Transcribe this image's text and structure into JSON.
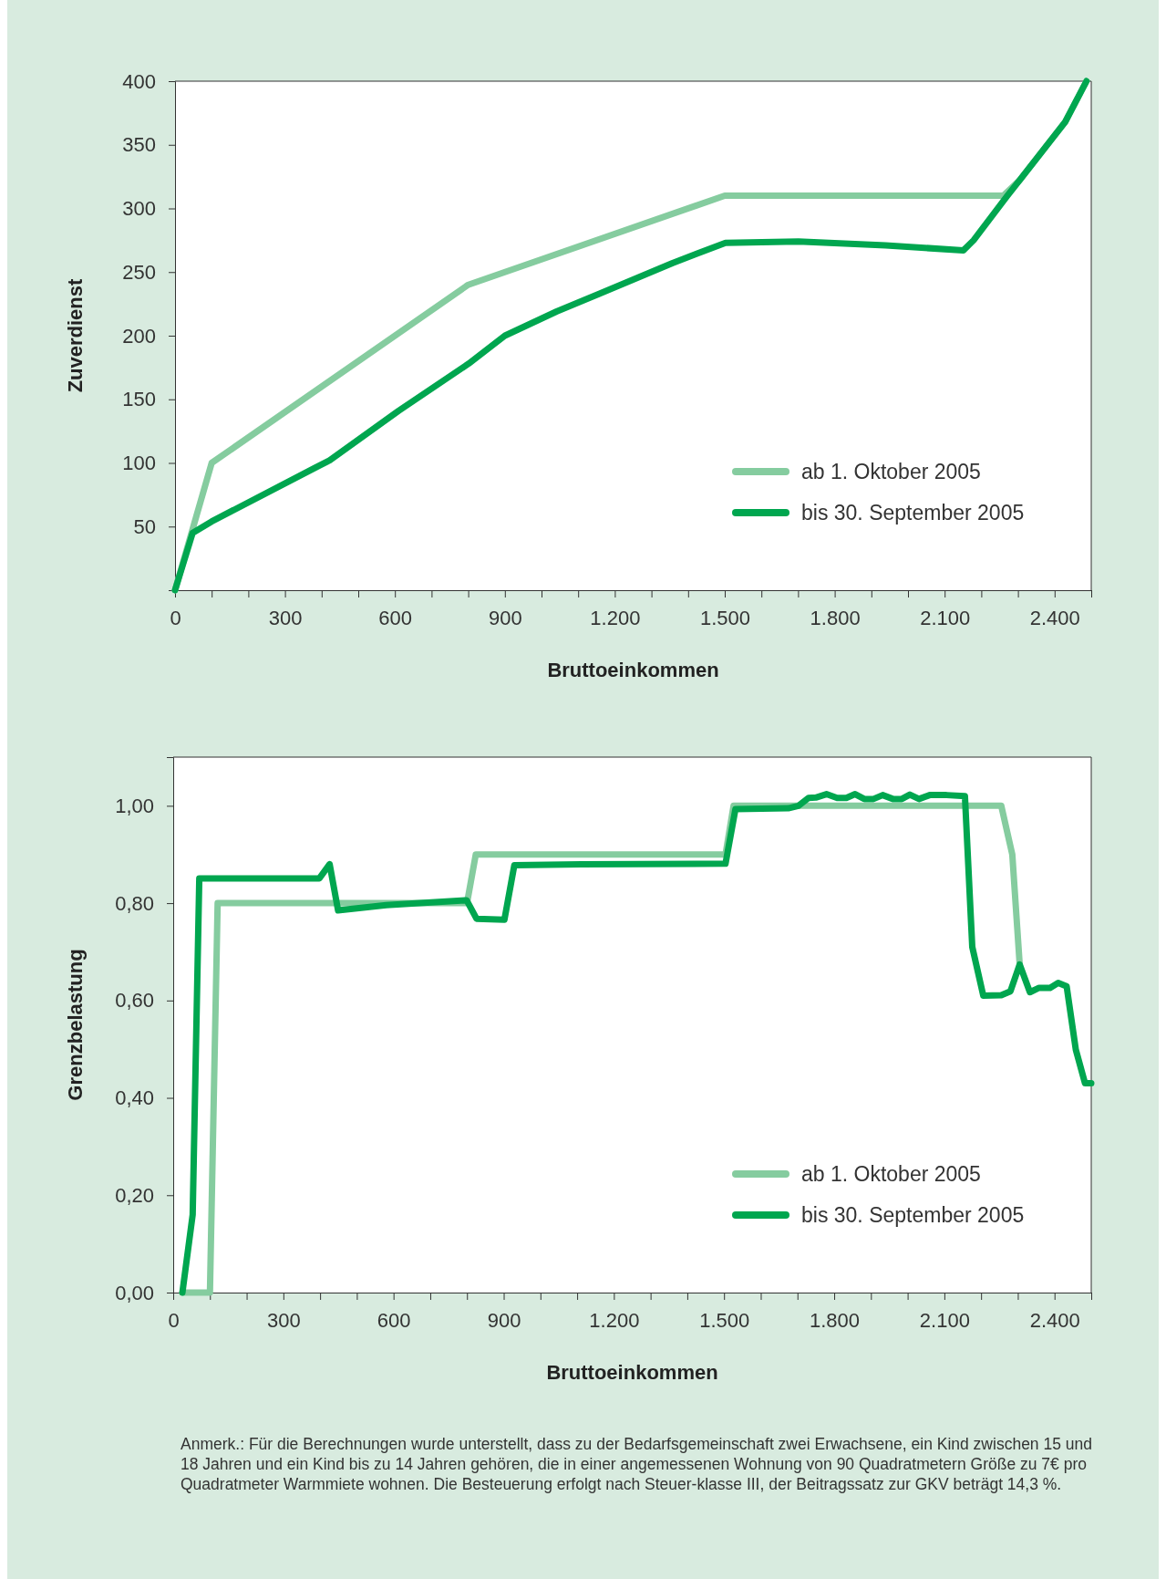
{
  "chart_data": [
    {
      "type": "line",
      "xlabel": "Bruttoeinkommen",
      "ylabel": "Zuverdienst",
      "xlim": [
        0,
        2500
      ],
      "ylim": [
        0,
        400
      ],
      "xticks": [
        0,
        {
          "value": 100,
          "label": null
        },
        {
          "value": 200,
          "label": null
        },
        300,
        {
          "value": 400,
          "label": null
        },
        {
          "value": 500,
          "label": null
        },
        600,
        {
          "value": 700,
          "label": null
        },
        {
          "value": 800,
          "label": null
        },
        900,
        {
          "value": 1000,
          "label": null
        },
        {
          "value": 1100,
          "label": null
        },
        {
          "value": 1200,
          "label": "1.200"
        },
        {
          "value": 1300,
          "label": null
        },
        {
          "value": 1400,
          "label": null
        },
        {
          "value": 1500,
          "label": "1.500"
        },
        {
          "value": 1600,
          "label": null
        },
        {
          "value": 1700,
          "label": null
        },
        {
          "value": 1800,
          "label": "1.800"
        },
        {
          "value": 1900,
          "label": null
        },
        {
          "value": 2000,
          "label": null
        },
        {
          "value": 2100,
          "label": "2.100"
        },
        {
          "value": 2200,
          "label": null
        },
        {
          "value": 2300,
          "label": null
        },
        {
          "value": 2400,
          "label": "2.400"
        },
        {
          "value": 2500,
          "label": null
        }
      ],
      "yticks": [
        {
          "value": 0,
          "label": null
        },
        50,
        100,
        150,
        200,
        250,
        300,
        350,
        400
      ],
      "legend": "bottom right",
      "grid": false,
      "line_style": "solid",
      "marker": "none",
      "series": [
        {
          "name": "ab 1. Oktober 2005",
          "color": "#85cc9f",
          "x": [
            0,
            100,
            800,
            1500,
            2260,
            2304,
            2429,
            2487
          ],
          "values": [
            0,
            100,
            240,
            310,
            310,
            322,
            368,
            400
          ]
        },
        {
          "name": "bis 30. September 2005",
          "color": "#00a64f",
          "x": [
            0,
            48,
            100,
            394,
            422,
            610,
            801,
            900,
            1041,
            1158,
            1357,
            1502,
            1701,
            1939,
            2151,
            2179,
            2271,
            2304,
            2429,
            2487
          ],
          "values": [
            0,
            45,
            54,
            98,
            102,
            141,
            178,
            200,
            219,
            233,
            257,
            273,
            274,
            271,
            267,
            275,
            310,
            322,
            368,
            400
          ]
        }
      ]
    },
    {
      "type": "line",
      "xlabel": "Bruttoeinkommen",
      "ylabel": "Grenzbelastung",
      "xlim": [
        0,
        2500
      ],
      "ylim": [
        0,
        1.1
      ],
      "xticks": [
        0,
        {
          "value": 100,
          "label": null
        },
        {
          "value": 200,
          "label": null
        },
        300,
        {
          "value": 400,
          "label": null
        },
        {
          "value": 500,
          "label": null
        },
        600,
        {
          "value": 700,
          "label": null
        },
        {
          "value": 800,
          "label": null
        },
        900,
        {
          "value": 1000,
          "label": null
        },
        {
          "value": 1100,
          "label": null
        },
        {
          "value": 1200,
          "label": "1.200"
        },
        {
          "value": 1300,
          "label": null
        },
        {
          "value": 1400,
          "label": null
        },
        {
          "value": 1500,
          "label": "1.500"
        },
        {
          "value": 1600,
          "label": null
        },
        {
          "value": 1700,
          "label": null
        },
        {
          "value": 1800,
          "label": "1.800"
        },
        {
          "value": 1900,
          "label": null
        },
        {
          "value": 2000,
          "label": null
        },
        {
          "value": 2100,
          "label": "2.100"
        },
        {
          "value": 2200,
          "label": null
        },
        {
          "value": 2300,
          "label": null
        },
        {
          "value": 2400,
          "label": "2.400"
        },
        {
          "value": 2500,
          "label": null
        }
      ],
      "yticks": [
        {
          "value": 0,
          "label": "0,00"
        },
        {
          "value": 0.2,
          "label": "0,20"
        },
        {
          "value": 0.4,
          "label": "0,40"
        },
        {
          "value": 0.6,
          "label": "0,60"
        },
        {
          "value": 0.8,
          "label": "0,80"
        },
        {
          "value": 1,
          "label": "1,00"
        }
      ],
      "legend": "bottom right",
      "grid": false,
      "line_style": "solid",
      "marker": "none",
      "series": [
        {
          "name": "ab 1. Oktober 2005",
          "color": "#85cc9f",
          "x": [
            25,
            100,
            121,
            800,
            824,
            1504,
            1526,
            2255,
            2285,
            2305
          ],
          "values": [
            0,
            0,
            0.8,
            0.8,
            0.9,
            0.9,
            1.0,
            1.0,
            0.9,
            0.676
          ]
        },
        {
          "name": "bis 30. September 2005",
          "color": "#00a64f",
          "x": [
            25,
            53,
            71,
            398,
            426,
            449,
            580,
            799,
            826,
            902,
            929,
            1111,
            1504,
            1531,
            1675,
            1703,
            1730,
            1750,
            1779,
            1808,
            1833,
            1857,
            1882,
            1907,
            1932,
            1960,
            1984,
            2006,
            2031,
            2060,
            2106,
            2156,
            2176,
            2206,
            2255,
            2280,
            2305,
            2333,
            2358,
            2388,
            2410,
            2433,
            2458,
            2483,
            2500
          ],
          "values": [
            0,
            0.16,
            0.851,
            0.851,
            0.88,
            0.785,
            0.796,
            0.806,
            0.768,
            0.766,
            0.878,
            0.88,
            0.881,
            0.993,
            0.995,
            1.0,
            1.016,
            1.017,
            1.024,
            1.016,
            1.016,
            1.024,
            1.014,
            1.014,
            1.022,
            1.014,
            1.014,
            1.023,
            1.014,
            1.022,
            1.022,
            1.02,
            0.71,
            0.61,
            0.611,
            0.619,
            0.674,
            0.617,
            0.626,
            0.626,
            0.636,
            0.629,
            0.499,
            0.43,
            0.43
          ]
        }
      ],
      "annotations": [
        "Anmerk.: Für die Berechnungen wurde unterstellt, dass zu der Bedarfsgemeinschaft zwei Erwachsene, ein Kind zwischen 15 und 18 Jahren und ein Kind bis zu 14 Jahren gehören, die in einer angemessenen Wohnung von 90 Quadratmetern Größe zu 7€ pro Quadratmeter Warmmiete wohnen. Die Besteuerung erfolgt nach Steuer-klasse III, der Beitragssatz zur GKV beträgt 14,3 %."
      ]
    }
  ]
}
